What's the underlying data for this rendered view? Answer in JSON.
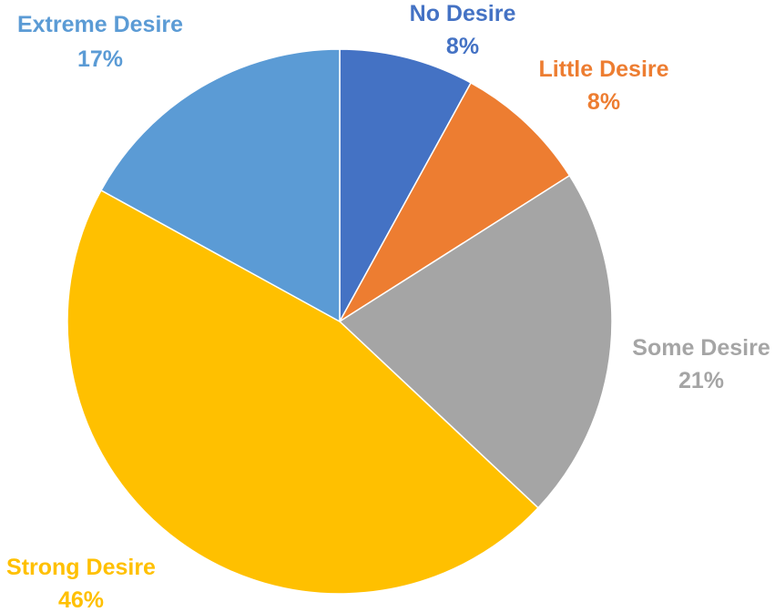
{
  "chart_data": {
    "type": "pie",
    "title": "",
    "slices": [
      {
        "label": "No Desire",
        "pct_label": "8%",
        "value": 8,
        "color": "#4472C4"
      },
      {
        "label": "Little Desire",
        "pct_label": "8%",
        "value": 8,
        "color": "#ED7D31"
      },
      {
        "label": "Some Desire",
        "pct_label": "21%",
        "value": 21,
        "color": "#A5A5A5"
      },
      {
        "label": "Strong Desire",
        "pct_label": "46%",
        "value": 46,
        "color": "#FFC000"
      },
      {
        "label": "Extreme Desire",
        "pct_label": "17%",
        "value": 17,
        "color": "#5B9BD5"
      }
    ],
    "start_angle": "12 o'clock",
    "direction": "clockwise",
    "legend": "none"
  }
}
